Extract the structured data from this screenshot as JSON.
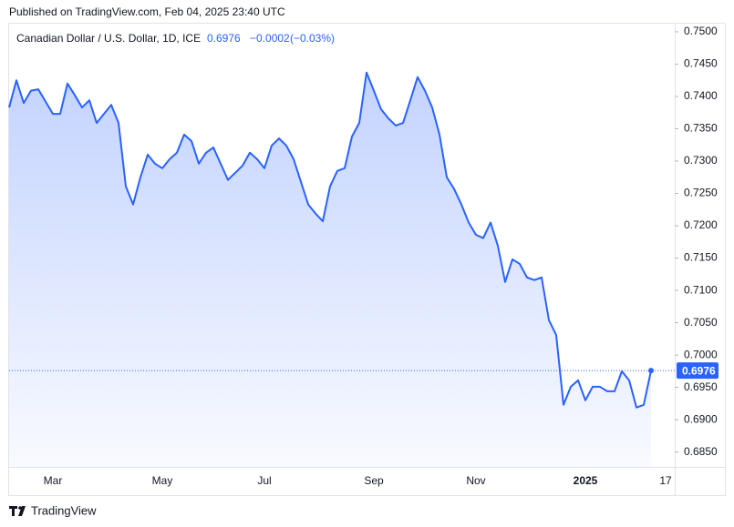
{
  "chart_data": {
    "type": "area",
    "header": "Published on TradingView.com, Feb 04, 2025 23:40 UTC",
    "title": "Canadian Dollar / U.S. Dollar, 1D, ICE",
    "change": "−0.0002",
    "change_pct": "(−0.03%)",
    "footer": "TradingView",
    "categories": [
      null,
      null,
      null,
      null,
      null,
      null,
      "Mar",
      null,
      null,
      null,
      null,
      null,
      null,
      null,
      null,
      null,
      null,
      null,
      null,
      null,
      null,
      "May",
      null,
      null,
      null,
      null,
      null,
      null,
      null,
      null,
      null,
      null,
      null,
      null,
      null,
      "Jul",
      null,
      null,
      null,
      null,
      null,
      null,
      null,
      null,
      null,
      null,
      null,
      null,
      null,
      null,
      "Sep",
      null,
      null,
      null,
      null,
      null,
      null,
      null,
      null,
      null,
      null,
      null,
      null,
      null,
      "Nov",
      null,
      null,
      null,
      null,
      null,
      null,
      null,
      null,
      null,
      null,
      null,
      null,
      null,
      null,
      "2025",
      null,
      null,
      null,
      null,
      null,
      null,
      null,
      null,
      null,
      null,
      "17"
    ],
    "series": [
      {
        "name": "Canadian Dollar / U.S. Dollar",
        "color": "#2962ff",
        "values": [
          0.7383,
          0.7425,
          0.739,
          0.7409,
          0.7411,
          0.7392,
          0.7373,
          0.7373,
          0.742,
          0.7402,
          0.7383,
          0.7394,
          0.7359,
          0.7373,
          0.7387,
          0.7359,
          0.7261,
          0.7233,
          0.7275,
          0.731,
          0.7296,
          0.7289,
          0.7303,
          0.7313,
          0.7341,
          0.7331,
          0.7296,
          0.7313,
          0.7321,
          0.7296,
          0.7271,
          0.7282,
          0.7293,
          0.7313,
          0.7303,
          0.7289,
          0.7324,
          0.7335,
          0.7324,
          0.7303,
          0.7268,
          0.7233,
          0.7219,
          0.7207,
          0.7261,
          0.7285,
          0.7289,
          0.7338,
          0.7359,
          0.7437,
          0.7409,
          0.738,
          0.7366,
          0.7355,
          0.7359,
          0.7394,
          0.743,
          0.7409,
          0.7383,
          0.7341,
          0.7275,
          0.7257,
          0.7233,
          0.7205,
          0.7186,
          0.7181,
          0.7205,
          0.7169,
          0.7113,
          0.7148,
          0.7141,
          0.712,
          0.7116,
          0.712,
          0.7054,
          0.7031,
          0.6923,
          0.6951,
          0.6961,
          0.693,
          0.6951,
          0.6951,
          0.6944,
          0.6944,
          0.6975,
          0.6961,
          0.6919,
          0.6923,
          0.6976,
          null,
          null
        ]
      }
    ],
    "ylim": [
      0.6827,
      0.7514
    ],
    "yticks": [
      {
        "value": 0.685,
        "label": "0.6850"
      },
      {
        "value": 0.69,
        "label": "0.6900"
      },
      {
        "value": 0.695,
        "label": "0.6950"
      },
      {
        "value": 0.7,
        "label": "0.7000"
      },
      {
        "value": 0.705,
        "label": "0.7050"
      },
      {
        "value": 0.71,
        "label": "0.7100"
      },
      {
        "value": 0.715,
        "label": "0.7150"
      },
      {
        "value": 0.72,
        "label": "0.7200"
      },
      {
        "value": 0.725,
        "label": "0.7250"
      },
      {
        "value": 0.73,
        "label": "0.7300"
      },
      {
        "value": 0.735,
        "label": "0.7350"
      },
      {
        "value": 0.74,
        "label": "0.7400"
      },
      {
        "value": 0.745,
        "label": "0.7450"
      },
      {
        "value": 0.75,
        "label": "0.7500"
      }
    ],
    "grid": false
  }
}
